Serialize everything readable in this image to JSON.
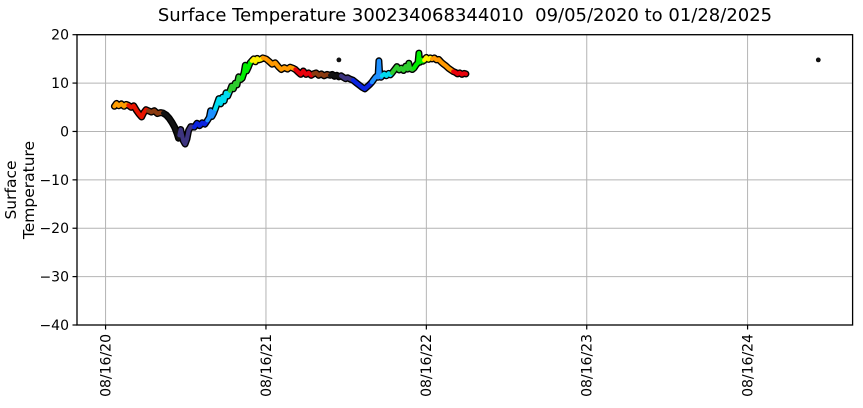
{
  "title": "Surface Temperature 300234068344010  09/05/2020 to 01/28/2025",
  "chart_data": {
    "type": "line",
    "title": "Surface Temperature 300234068344010  09/05/2020 to 01/28/2025",
    "xlabel": "",
    "ylabel": "Surface Temperature",
    "grid": true,
    "legend": "none",
    "x_axis": {
      "unit": "days since 08/16/20",
      "lim": [
        -65,
        1700
      ],
      "ticks": [
        {
          "pos": 0,
          "label": "08/16/20"
        },
        {
          "pos": 365,
          "label": "08/16/21"
        },
        {
          "pos": 730,
          "label": "08/16/22"
        },
        {
          "pos": 1095,
          "label": "08/16/23"
        },
        {
          "pos": 1461,
          "label": "08/16/24"
        }
      ]
    },
    "y_axis": {
      "lim": [
        -40,
        20
      ],
      "ticks": [
        {
          "pos": 20,
          "label": "20"
        },
        {
          "pos": 10,
          "label": "10"
        },
        {
          "pos": 0,
          "label": "0"
        },
        {
          "pos": -10,
          "label": "−10"
        },
        {
          "pos": -20,
          "label": "−20"
        },
        {
          "pos": -30,
          "label": "−30"
        },
        {
          "pos": -40,
          "label": "−40"
        }
      ]
    },
    "style": {
      "background": "#ffffff",
      "grid_color": "#b4b4b4",
      "frame_color": "#000000",
      "series_outline": "#000000",
      "outlier_color": "#111111",
      "line_width": 4.2,
      "outline_width": 7
    },
    "series": [
      {
        "name": "surface-temperature",
        "segments": [
          {
            "color": "#FF9D00",
            "points": [
              [
                20,
                5.2
              ],
              [
                25,
                5.8
              ],
              [
                30,
                5.3
              ],
              [
                36,
                5.7
              ],
              [
                42,
                5.2
              ],
              [
                47,
                5.6
              ],
              [
                52,
                5.4
              ]
            ]
          },
          {
            "color": "#E81400",
            "points": [
              [
                52,
                5.4
              ],
              [
                58,
                5.0
              ],
              [
                64,
                5.3
              ],
              [
                70,
                4.4
              ],
              [
                76,
                3.6
              ],
              [
                82,
                3.0
              ],
              [
                87,
                3.9
              ],
              [
                92,
                4.5
              ],
              [
                97,
                4.3
              ]
            ]
          },
          {
            "color": "#8B3A10",
            "points": [
              [
                97,
                4.3
              ],
              [
                104,
                4.0
              ],
              [
                111,
                4.3
              ],
              [
                118,
                3.7
              ],
              [
                125,
                3.9
              ],
              [
                131,
                3.8
              ]
            ]
          },
          {
            "color": "#121212",
            "points": [
              [
                131,
                3.8
              ],
              [
                138,
                3.4
              ],
              [
                145,
                2.7
              ],
              [
                151,
                1.9
              ],
              [
                157,
                0.9
              ],
              [
                163,
                -0.5
              ],
              [
                166,
                -1.4
              ],
              [
                168,
                -0.8
              ]
            ]
          },
          {
            "color": "#3D3480",
            "points": [
              [
                168,
                -0.8
              ],
              [
                171,
                0.4
              ],
              [
                174,
                -0.8
              ],
              [
                177,
                -1.9
              ],
              [
                181,
                -2.6
              ],
              [
                185,
                -1.6
              ],
              [
                189,
                0.2
              ],
              [
                194,
                1.0
              ],
              [
                202,
                0.9
              ]
            ]
          },
          {
            "color": "#0B24E0",
            "points": [
              [
                202,
                0.9
              ],
              [
                208,
                1.7
              ],
              [
                214,
                1.2
              ],
              [
                220,
                1.8
              ],
              [
                226,
                1.5
              ],
              [
                232,
                2.3
              ]
            ]
          },
          {
            "color": "#1E90FF",
            "points": [
              [
                232,
                2.3
              ],
              [
                236,
                2.9
              ],
              [
                239,
                4.3
              ],
              [
                242,
                3.1
              ],
              [
                246,
                3.8
              ],
              [
                250,
                4.7
              ]
            ]
          },
          {
            "color": "#00DCF0",
            "points": [
              [
                250,
                4.7
              ],
              [
                254,
                5.8
              ],
              [
                258,
                6.8
              ],
              [
                262,
                5.7
              ],
              [
                266,
                7.1
              ],
              [
                270,
                6.3
              ],
              [
                274,
                8.0
              ],
              [
                278,
                7.3
              ],
              [
                283,
                8.4
              ]
            ]
          },
          {
            "color": "#2ECC2E",
            "points": [
              [
                283,
                8.4
              ],
              [
                287,
                9.4
              ],
              [
                291,
                8.8
              ],
              [
                295,
                10.0
              ],
              [
                299,
                9.6
              ],
              [
                303,
                11.3
              ],
              [
                307,
                10.7
              ],
              [
                311,
                11.0
              ]
            ]
          },
          {
            "color": "#00EE00",
            "points": [
              [
                311,
                11.0
              ],
              [
                315,
                12.1
              ],
              [
                318,
                13.7
              ],
              [
                321,
                12.5
              ],
              [
                325,
                13.3
              ],
              [
                329,
                14.2
              ],
              [
                333,
                14.6
              ]
            ]
          },
          {
            "color": "#FFF000",
            "points": [
              [
                333,
                14.6
              ],
              [
                337,
                15.0
              ],
              [
                341,
                14.4
              ],
              [
                345,
                15.1
              ],
              [
                349,
                14.8
              ],
              [
                353,
                14.9
              ],
              [
                358,
                15.2
              ]
            ]
          },
          {
            "color": "#FF9900",
            "points": [
              [
                358,
                15.2
              ],
              [
                365,
                15.0
              ],
              [
                372,
                14.5
              ],
              [
                379,
                13.9
              ],
              [
                386,
                14.2
              ],
              [
                393,
                13.4
              ],
              [
                400,
                12.8
              ],
              [
                407,
                13.2
              ],
              [
                414,
                12.9
              ],
              [
                420,
                13.3
              ],
              [
                426,
                13.1
              ],
              [
                432,
                12.8
              ]
            ]
          },
          {
            "color": "#E8000B",
            "points": [
              [
                432,
                12.8
              ],
              [
                438,
                12.3
              ],
              [
                444,
                11.8
              ],
              [
                450,
                12.5
              ],
              [
                456,
                11.8
              ],
              [
                462,
                12.1
              ],
              [
                468,
                11.6
              ],
              [
                473,
                11.9
              ]
            ]
          },
          {
            "color": "#8B3A10",
            "points": [
              [
                473,
                11.9
              ],
              [
                479,
                12.1
              ],
              [
                485,
                11.6
              ],
              [
                491,
                11.9
              ],
              [
                497,
                11.5
              ],
              [
                504,
                11.8
              ],
              [
                511,
                11.6
              ]
            ]
          },
          {
            "color": "#121212",
            "points": [
              [
                511,
                11.6
              ],
              [
                516,
                11.8
              ],
              [
                521,
                11.4
              ],
              [
                526,
                11.6
              ],
              [
                531,
                11.3
              ],
              [
                536,
                11.5
              ]
            ]
          },
          {
            "color": "#3D3480",
            "points": [
              [
                536,
                11.5
              ],
              [
                541,
                11.2
              ],
              [
                546,
                10.9
              ],
              [
                551,
                11.1
              ],
              [
                557,
                10.8
              ],
              [
                563,
                10.6
              ]
            ]
          },
          {
            "color": "#0B24E0",
            "points": [
              [
                563,
                10.6
              ],
              [
                570,
                10.1
              ],
              [
                577,
                9.6
              ],
              [
                584,
                9.1
              ],
              [
                590,
                8.8
              ],
              [
                596,
                9.3
              ],
              [
                601,
                9.7
              ],
              [
                606,
                10.2
              ]
            ]
          },
          {
            "color": "#1E90FF",
            "points": [
              [
                606,
                10.2
              ],
              [
                610,
                10.7
              ],
              [
                614,
                11.2
              ],
              [
                618,
                11.5
              ],
              [
                620,
                11.2
              ],
              [
                622,
                14.6
              ],
              [
                624,
                11.4
              ],
              [
                627,
                11.2
              ],
              [
                629,
                11.5
              ]
            ]
          },
          {
            "color": "#00DCF0",
            "points": [
              [
                629,
                11.5
              ],
              [
                634,
                11.9
              ],
              [
                639,
                11.5
              ],
              [
                644,
                12.0
              ],
              [
                648,
                11.7
              ],
              [
                652,
                12.1
              ]
            ]
          },
          {
            "color": "#2ECC2E",
            "points": [
              [
                652,
                12.1
              ],
              [
                658,
                12.8
              ],
              [
                663,
                13.4
              ],
              [
                668,
                12.7
              ],
              [
                673,
                13.1
              ],
              [
                678,
                12.6
              ],
              [
                683,
                13.5
              ],
              [
                687,
                12.9
              ],
              [
                690,
                14.1
              ],
              [
                693,
                13.0
              ],
              [
                698,
                12.8
              ],
              [
                702,
                13.1
              ]
            ]
          },
          {
            "color": "#00EE00",
            "points": [
              [
                702,
                13.1
              ],
              [
                707,
                13.8
              ],
              [
                711,
                14.2
              ],
              [
                713,
                16.2
              ],
              [
                715,
                14.3
              ],
              [
                719,
                14.8
              ],
              [
                722,
                14.5
              ],
              [
                725,
                14.7
              ]
            ]
          },
          {
            "color": "#FFF000",
            "points": [
              [
                725,
                14.7
              ],
              [
                730,
                15.3
              ],
              [
                735,
                14.9
              ],
              [
                739,
                15.2
              ],
              [
                743,
                15.0
              ]
            ]
          },
          {
            "color": "#FF9900",
            "points": [
              [
                743,
                15.0
              ],
              [
                748,
                15.2
              ],
              [
                753,
                14.8
              ],
              [
                758,
                14.9
              ],
              [
                763,
                14.4
              ],
              [
                768,
                14.0
              ],
              [
                774,
                13.6
              ],
              [
                780,
                13.1
              ],
              [
                786,
                12.7
              ],
              [
                791,
                12.4
              ]
            ]
          },
          {
            "color": "#E8000B",
            "points": [
              [
                791,
                12.4
              ],
              [
                796,
                12.2
              ],
              [
                801,
                11.9
              ],
              [
                806,
                12.1
              ],
              [
                811,
                11.8
              ],
              [
                816,
                12.0
              ],
              [
                820,
                11.9
              ]
            ]
          }
        ]
      }
    ],
    "outlier_points": [
      [
        531,
        14.8
      ],
      [
        1622,
        14.8
      ]
    ]
  }
}
